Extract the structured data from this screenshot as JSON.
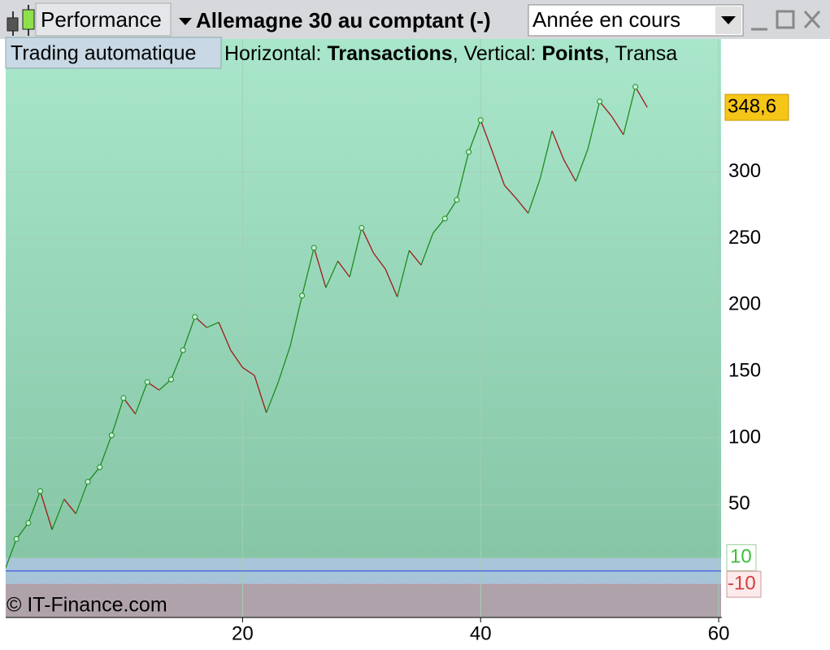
{
  "toolbar": {
    "panel": "Performance",
    "instrument": "Allemagne 30 au comptant (-)",
    "period": "Année en cours",
    "button": "Trading automatique"
  },
  "chart_data": {
    "type": "line",
    "subtitle": [
      "Horizontal: ",
      "Transactions",
      ", Vertical: ",
      "Points",
      ", Transa"
    ],
    "credit": "© IT-Finance.com",
    "x": [
      0,
      1,
      2,
      3,
      4,
      5,
      6,
      7,
      8,
      9,
      10,
      11,
      12,
      13,
      14,
      15,
      16,
      17,
      18,
      19,
      20,
      21,
      22,
      23,
      24,
      25,
      26,
      27,
      28,
      29,
      30,
      31,
      32,
      33,
      34,
      35,
      36,
      37,
      38,
      39,
      40,
      41,
      42,
      43,
      44,
      45,
      46,
      47,
      48,
      49,
      50,
      51,
      52,
      53,
      54
    ],
    "values": [
      0,
      24,
      36,
      60,
      31,
      54,
      43,
      67,
      78,
      102,
      130,
      118,
      142,
      136,
      144,
      166,
      191,
      183,
      187,
      166,
      153,
      147,
      119,
      142,
      169,
      207,
      243,
      213,
      233,
      221,
      258,
      239,
      227,
      206,
      241,
      230,
      254,
      265,
      279,
      315,
      339,
      315,
      290,
      280,
      269,
      295,
      331,
      309,
      293,
      317,
      353,
      342,
      328,
      364,
      348.6
    ],
    "value_labels": [
      null,
      null,
      null,
      null,
      null,
      null,
      null,
      null,
      null,
      null,
      null,
      null,
      null,
      null,
      null,
      null,
      null,
      null,
      null,
      null,
      null,
      null,
      null,
      null,
      null,
      null,
      null,
      null,
      null,
      null,
      null,
      null,
      null,
      null,
      null,
      null,
      null,
      null,
      null,
      null,
      null,
      null,
      null,
      null,
      null,
      null,
      null,
      null,
      null,
      null,
      null,
      null,
      null,
      null,
      "348,6"
    ],
    "up_color": "#1e8c1e",
    "down_color": "#a01818",
    "zero_color": "#2040e0",
    "upper_band": 10,
    "lower_band": -10,
    "xlim": [
      0.1,
      60.2
    ],
    "ylim": [
      -35,
      400
    ],
    "xticks": [
      20,
      40,
      60
    ],
    "yticks": [
      50,
      100,
      150,
      200,
      250,
      300
    ],
    "grid": true
  }
}
